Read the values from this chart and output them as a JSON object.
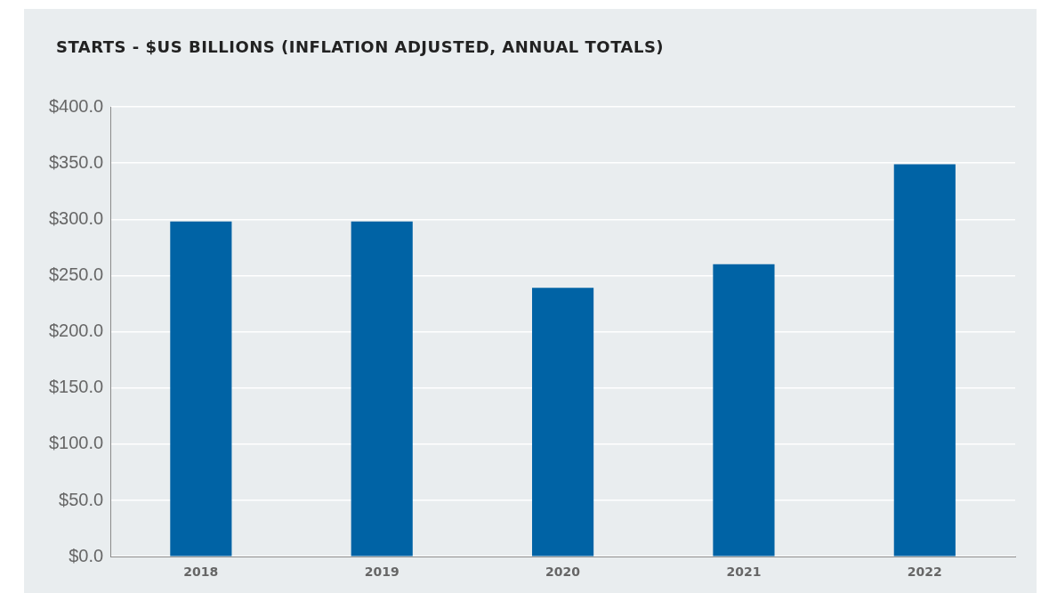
{
  "chart_data": {
    "type": "bar",
    "title": "STARTS - $US BILLIONS (INFLATION ADJUSTED, ANNUAL TOTALS)",
    "categories": [
      "2018",
      "2019",
      "2020",
      "2021",
      "2022"
    ],
    "values": [
      298,
      298,
      239,
      260,
      349
    ],
    "color": "#0063a5",
    "ylim": [
      0,
      400
    ],
    "yticks": [
      {
        "value": 0,
        "label": "$0.0"
      },
      {
        "value": 50,
        "label": "$50.0"
      },
      {
        "value": 100,
        "label": "$100.0"
      },
      {
        "value": 150,
        "label": "$150.0"
      },
      {
        "value": 200,
        "label": "$200.0"
      },
      {
        "value": 250,
        "label": "$250.0"
      },
      {
        "value": 300,
        "label": "$300.0"
      },
      {
        "value": 350,
        "label": "$350.0"
      },
      {
        "value": 400,
        "label": "$400.0"
      }
    ],
    "grid": "y",
    "legend": false
  }
}
